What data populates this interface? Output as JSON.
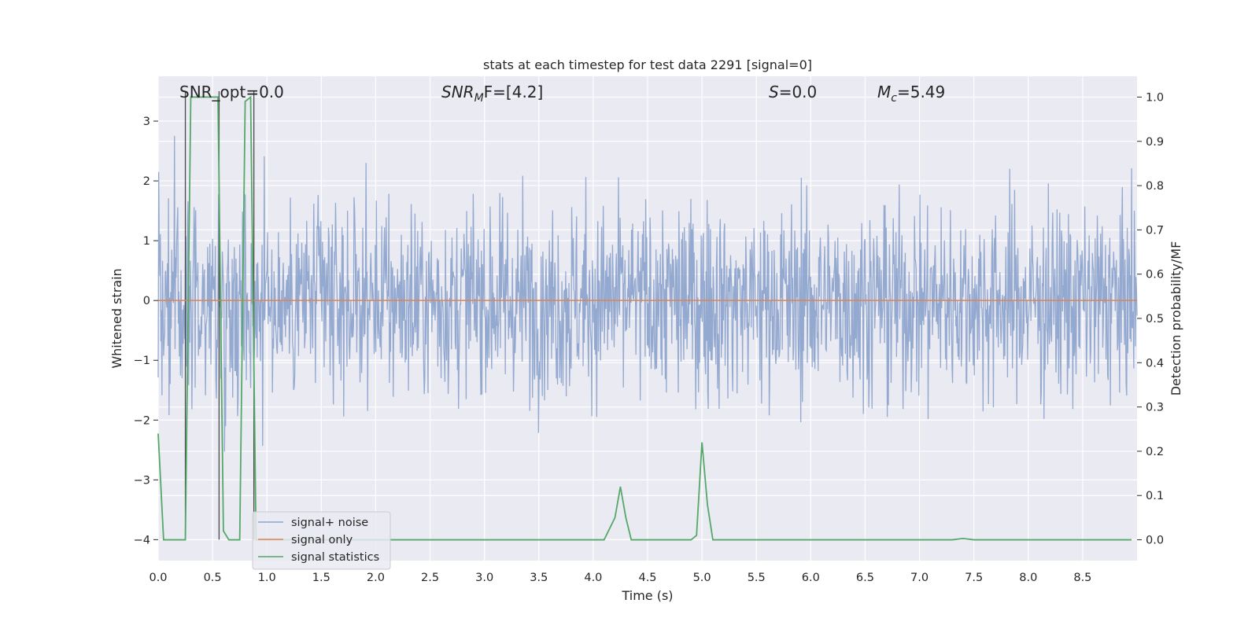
{
  "chart_data": {
    "type": "line",
    "title": "stats at each timestep for test data 2291 [signal=0]",
    "xlabel": "Time (s)",
    "ylabel_left": "Whitened strain",
    "ylabel_right": "Detection probability/MF",
    "xlim": [
      0,
      9.0
    ],
    "ylim_left": [
      -4.35,
      3.75
    ],
    "ylim_right": [
      -0.047,
      1.047
    ],
    "x_ticks": [
      "0.0",
      "0.5",
      "1.0",
      "1.5",
      "2.0",
      "2.5",
      "3.0",
      "3.5",
      "4.0",
      "4.5",
      "5.0",
      "5.5",
      "6.0",
      "6.5",
      "7.0",
      "7.5",
      "8.0",
      "8.5"
    ],
    "y_ticks_left": [
      "3",
      "2",
      "1",
      "0",
      "−1",
      "−2",
      "−3",
      "−4"
    ],
    "y_ticks_right": [
      "1.0",
      "0.9",
      "0.8",
      "0.7",
      "0.6",
      "0.5",
      "0.4",
      "0.3",
      "0.2",
      "0.1",
      "0.0"
    ],
    "grid": true,
    "legend_placement": "lower-left",
    "annotations": {
      "snr_opt": "SNR_opt=0.0",
      "snr_mf_main": "SNR",
      "snr_mf_sub": "M",
      "snr_mf_rest": "F=[4.2]",
      "s_main": "S",
      "s_rest": "=0.0",
      "mc_main": "M",
      "mc_sub": "c",
      "mc_rest": "=5.49"
    },
    "series": [
      {
        "name": "signal+ noise",
        "color": "#8fa5cd",
        "axis": "left",
        "description_values": "whitened noise, approximately within [-4, 3.4]"
      },
      {
        "name": "signal only",
        "color": "#dd8452",
        "axis": "left",
        "x": [
          0,
          9.0
        ],
        "y": [
          0,
          0
        ]
      },
      {
        "name": "signal statistics",
        "color": "#55a868",
        "axis": "right",
        "x": [
          0.0,
          0.05,
          0.1,
          0.15,
          0.2,
          0.25,
          0.3,
          0.35,
          0.4,
          0.45,
          0.5,
          0.55,
          0.6,
          0.65,
          0.7,
          0.75,
          0.8,
          0.85,
          0.9,
          0.95,
          1.0,
          1.5,
          2.0,
          2.5,
          3.0,
          3.5,
          4.0,
          4.1,
          4.2,
          4.25,
          4.3,
          4.35,
          4.4,
          4.5,
          4.7,
          4.9,
          4.95,
          5.0,
          5.05,
          5.1,
          5.15,
          5.5,
          6.0,
          6.5,
          7.0,
          7.3,
          7.4,
          7.5,
          8.0,
          8.5,
          8.95
        ],
        "y": [
          0.24,
          0.0,
          0.0,
          0.0,
          0.0,
          0.0,
          1.0,
          1.0,
          1.0,
          1.0,
          1.0,
          1.0,
          0.02,
          0.0,
          0.0,
          0.0,
          0.99,
          1.0,
          0.0,
          0.0,
          0.0,
          0.0,
          0.0,
          0.0,
          0.0,
          0.0,
          0.0,
          0.0,
          0.05,
          0.12,
          0.05,
          0.0,
          0.0,
          0.0,
          0.0,
          0.0,
          0.01,
          0.22,
          0.08,
          0.0,
          0.0,
          0.0,
          0.0,
          0.0,
          0.0,
          0.0,
          0.003,
          0.0,
          0.0,
          0.0,
          0.0
        ]
      }
    ],
    "vertical_markers_x": [
      0.25,
      0.56,
      0.88
    ]
  }
}
